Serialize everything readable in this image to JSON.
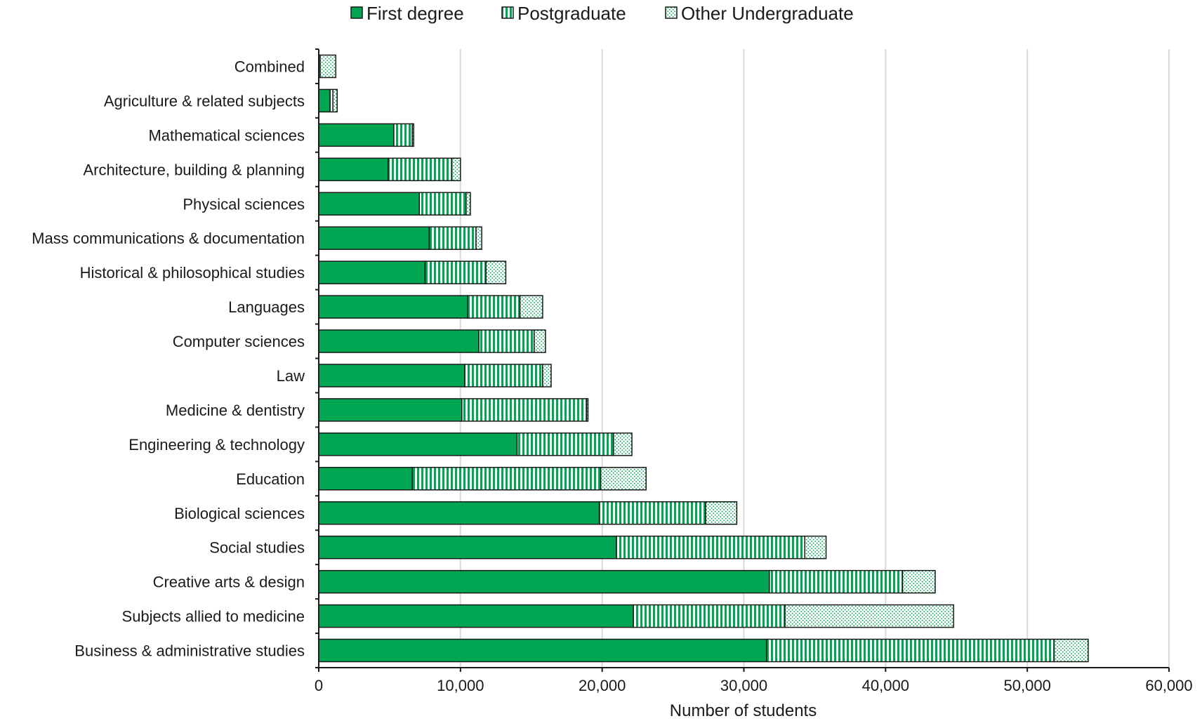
{
  "chart_data": {
    "type": "bar",
    "orientation": "horizontal",
    "stacked": true,
    "categories": [
      "Combined",
      "Agriculture & related subjects",
      "Mathematical sciences",
      "Architecture, building & planning",
      "Physical sciences",
      "Mass communications & documentation",
      "Historical & philosophical studies",
      "Languages",
      "Computer sciences",
      "Law",
      "Medicine & dentistry",
      "Engineering & technology",
      "Education",
      "Biological sciences",
      "Social studies",
      "Creative arts & design",
      "Subjects allied to medicine",
      "Business & administrative studies"
    ],
    "series": [
      {
        "name": "First degree",
        "pattern": "solid",
        "values": [
          0,
          800,
          5300,
          4900,
          7100,
          7800,
          7500,
          10500,
          11300,
          10300,
          10100,
          14000,
          6600,
          19800,
          21000,
          31800,
          22200,
          31600
        ]
      },
      {
        "name": "Postgraduate",
        "pattern": "vertical-stripes",
        "values": [
          100,
          200,
          1300,
          4500,
          3300,
          3300,
          4300,
          3700,
          3900,
          5500,
          8800,
          6800,
          13300,
          7500,
          13300,
          9400,
          10700,
          20300
        ]
      },
      {
        "name": "Other Undergraduate",
        "pattern": "dots",
        "values": [
          1100,
          300,
          100,
          600,
          300,
          400,
          1400,
          1600,
          800,
          600,
          100,
          1300,
          3200,
          2200,
          1500,
          2300,
          11900,
          2400
        ]
      }
    ],
    "xlabel": "Number of students",
    "ylabel": "",
    "xlim": [
      0,
      60000
    ],
    "xticks": [
      0,
      10000,
      20000,
      30000,
      40000,
      50000,
      60000
    ],
    "xtick_labels": [
      "0",
      "10,000",
      "20,000",
      "30,000",
      "40,000",
      "50,000",
      "60,000"
    ],
    "grid": "vertical",
    "legend_position": "top",
    "colors": {
      "bar": "#00a651",
      "bar_light": "#ffffff",
      "outline": "#1a1a1a",
      "grid": "#d9d9d9"
    }
  }
}
